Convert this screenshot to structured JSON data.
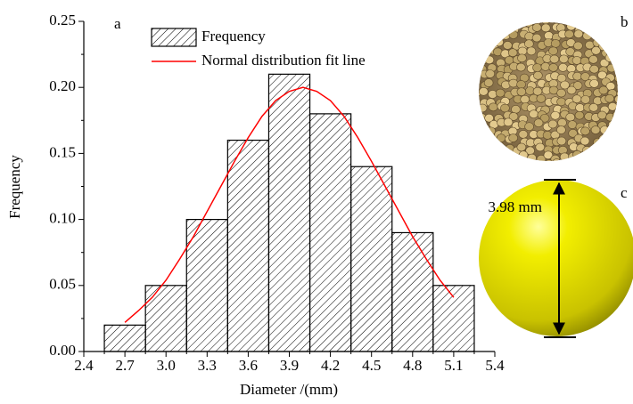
{
  "chart_data": {
    "type": "histogram",
    "x_label": "Diameter /(mm)",
    "y_label": "Frequency",
    "bins": [
      2.55,
      2.85,
      3.15,
      3.45,
      3.75,
      4.05,
      4.35,
      4.65,
      4.95,
      5.25
    ],
    "series": [
      {
        "name": "Frequency",
        "type": "histogram",
        "color": "#000000",
        "values": [
          0.02,
          0.05,
          0.1,
          0.16,
          0.21,
          0.18,
          0.14,
          0.09,
          0.05
        ]
      },
      {
        "name": "Normal distribution fit line",
        "type": "line",
        "color": "#ff0000",
        "x": [
          2.7,
          2.8,
          2.9,
          3.0,
          3.1,
          3.2,
          3.3,
          3.4,
          3.5,
          3.6,
          3.7,
          3.8,
          3.9,
          4.0,
          4.1,
          4.2,
          4.3,
          4.4,
          4.5,
          4.6,
          4.7,
          4.8,
          4.9,
          5.0,
          5.1
        ],
        "values": [
          0.022,
          0.031,
          0.041,
          0.054,
          0.07,
          0.087,
          0.106,
          0.125,
          0.144,
          0.162,
          0.178,
          0.19,
          0.197,
          0.2,
          0.197,
          0.19,
          0.178,
          0.162,
          0.144,
          0.125,
          0.106,
          0.087,
          0.07,
          0.054,
          0.041
        ]
      }
    ],
    "xlim": [
      2.4,
      5.4
    ],
    "xticks": [
      2.4,
      2.7,
      {
        "value": 3.0,
        "label": "3.0"
      },
      3.3,
      3.6,
      3.9,
      4.2,
      4.5,
      4.8,
      5.1,
      5.4
    ],
    "ylim": [
      0,
      0.25
    ],
    "yticks": [
      {
        "value": 0,
        "label": "0.00"
      },
      {
        "value": 0.05,
        "label": "0.05"
      },
      {
        "value": 0.1,
        "label": "0.10"
      },
      {
        "value": 0.15,
        "label": "0.15"
      },
      {
        "value": 0.2,
        "label": "0.20"
      },
      {
        "value": 0.25,
        "label": "0.25"
      }
    ],
    "legend": "upper-left",
    "annotations": [
      "a",
      "b",
      "c",
      "3.98 mm"
    ]
  }
}
